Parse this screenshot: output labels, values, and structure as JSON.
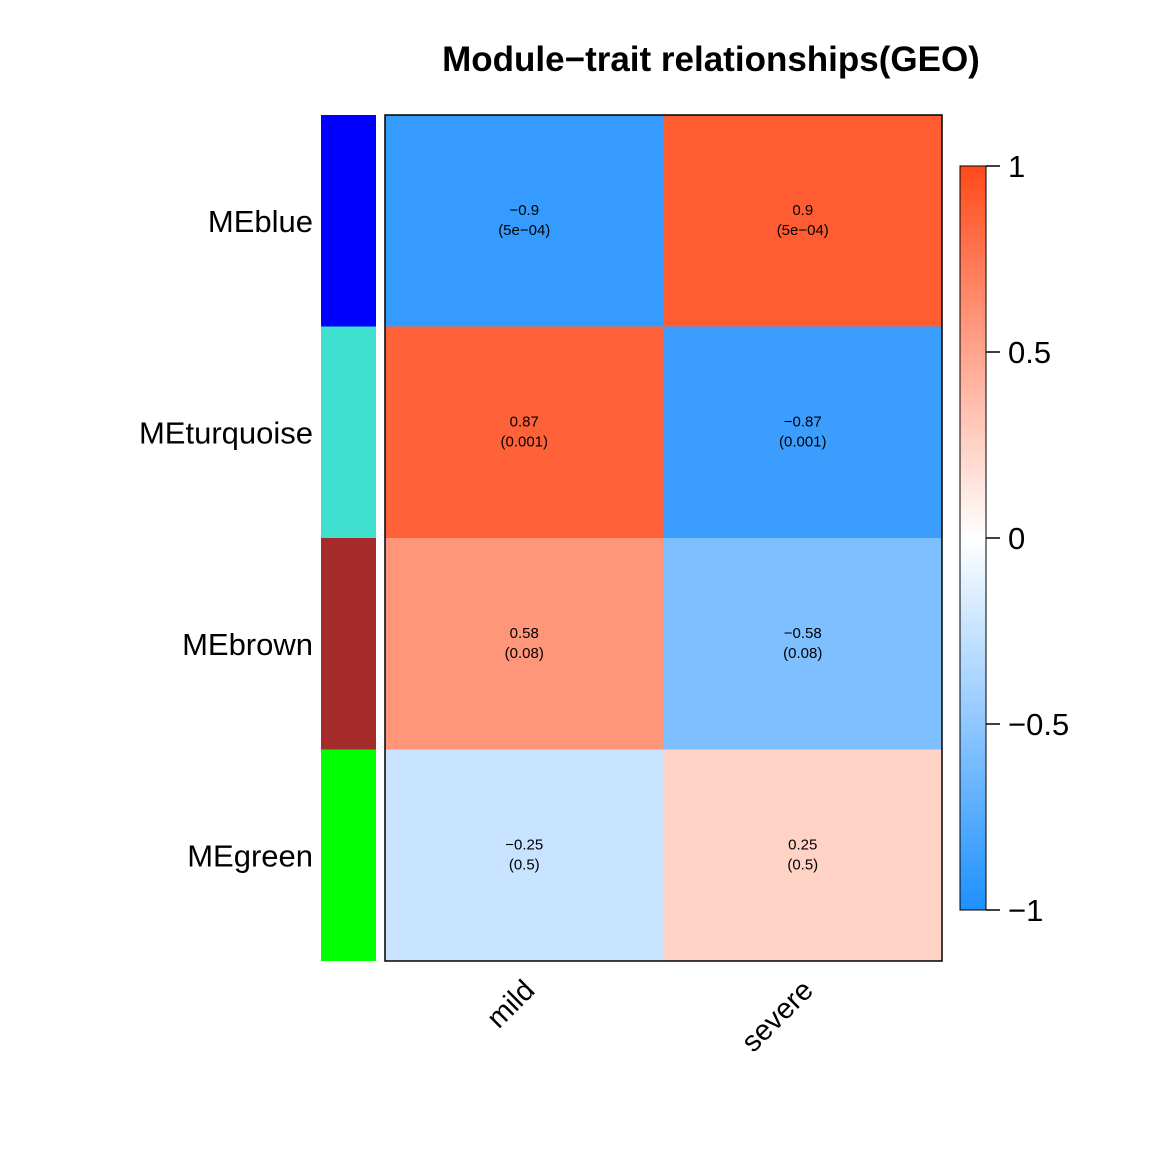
{
  "chart_data": {
    "type": "heatmap",
    "title": "Module−trait relationships(GEO)",
    "rows": [
      "MEblue",
      "MEturquoise",
      "MEbrown",
      "MEgreen"
    ],
    "row_colors": [
      "#0000FF",
      "#40E0D0",
      "#A52A2A",
      "#00FF00"
    ],
    "columns": [
      "mild",
      "severe"
    ],
    "values": [
      [
        -0.9,
        0.9
      ],
      [
        0.87,
        -0.87
      ],
      [
        0.58,
        -0.58
      ],
      [
        -0.25,
        0.25
      ]
    ],
    "cell_labels": [
      [
        [
          "−0.9",
          "(5e−04)"
        ],
        [
          "0.9",
          "(5e−04)"
        ]
      ],
      [
        [
          "0.87",
          "(0.001)"
        ],
        [
          "−0.87",
          "(0.001)"
        ]
      ],
      [
        [
          "0.58",
          "(0.08)"
        ],
        [
          "−0.58",
          "(0.08)"
        ]
      ],
      [
        [
          "−0.25",
          "(0.5)"
        ],
        [
          "0.25",
          "(0.5)"
        ]
      ]
    ],
    "colorscale": {
      "low": "#1E90FF",
      "mid": "#FFFFFF",
      "high": "#FF4A1A",
      "range": [
        -1,
        1
      ],
      "ticks": [
        1,
        0.5,
        0,
        -0.5,
        -1
      ],
      "tick_labels": [
        "1",
        "0.5",
        "0",
        "−0.5",
        "−1"
      ]
    }
  }
}
